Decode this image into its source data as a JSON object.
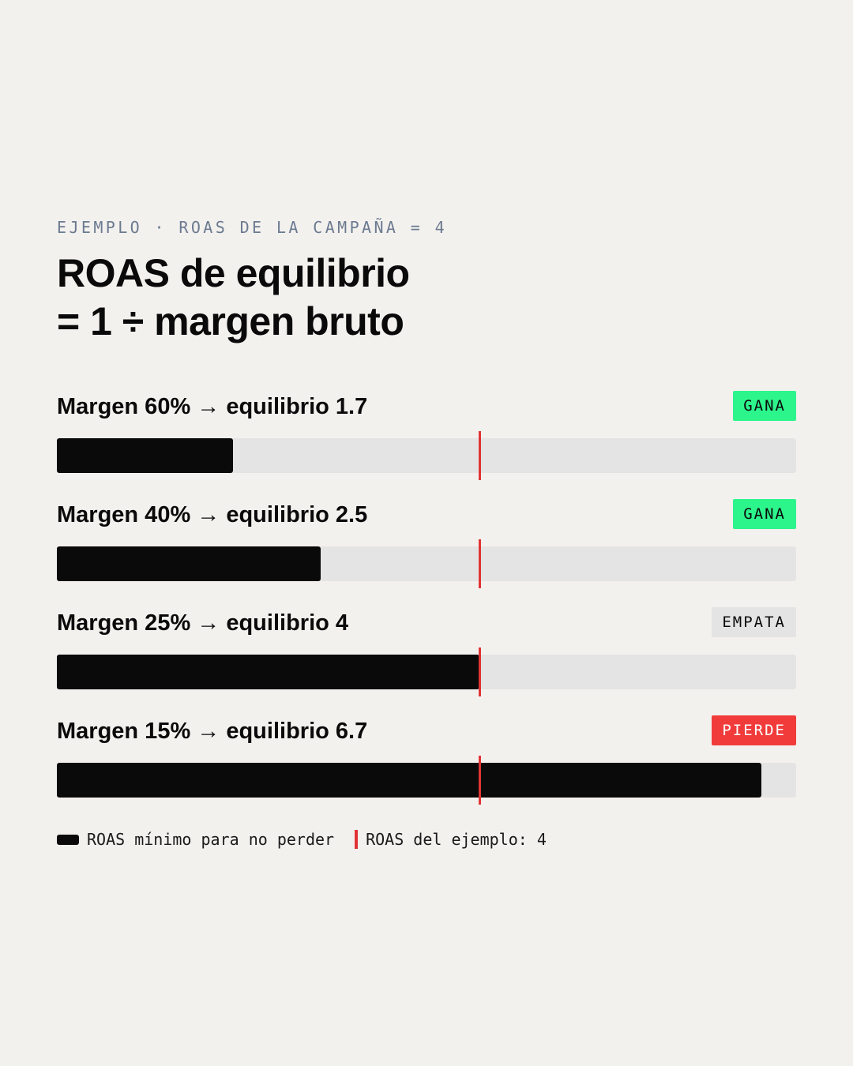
{
  "eyebrow": "EJEMPLO · ROAS DE LA CAMPAÑA = 4",
  "title_line1": "ROAS de equilibrio",
  "title_line2": "= 1 ÷ margen bruto",
  "chart_data": {
    "type": "bar",
    "orientation": "horizontal",
    "categories": [
      "Margen 60% → equilibrio 1.7",
      "Margen 40% → equilibrio 2.5",
      "Margen 25% → equilibrio 4",
      "Margen 15% → equilibrio 6.7"
    ],
    "values": [
      1.67,
      2.5,
      4.0,
      6.67
    ],
    "reference_line": 4,
    "xlim": [
      0,
      7
    ],
    "statuses": [
      "GANA",
      "GANA",
      "EMPATA",
      "PIERDE"
    ],
    "legend": [
      "ROAS mínimo para no perder",
      "ROAS del ejemplo: 4"
    ]
  },
  "colors": {
    "bar": "#0a0a0a",
    "track": "#e4e4e4",
    "marker": "#e03434",
    "win": "#2cf58c",
    "tie": "#e4e4e4",
    "lose": "#f13b3b"
  }
}
